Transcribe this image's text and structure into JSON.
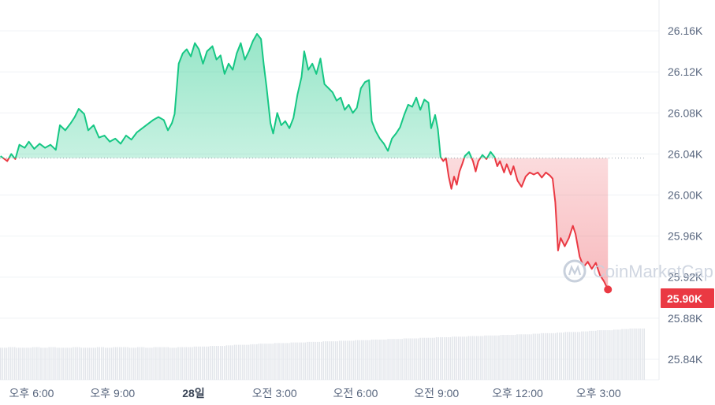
{
  "chart_data": {
    "type": "line",
    "baseline": 26.036,
    "current_label": "25.90K",
    "watermark": "CoinMarketCap",
    "ylim": [
      25.82,
      26.19
    ],
    "y_ticks": [
      "26.16K",
      "26.12K",
      "26.08K",
      "26.04K",
      "26.00K",
      "25.96K",
      "25.92K",
      "25.88K",
      "25.84K"
    ],
    "y_tick_values": [
      26.16,
      26.12,
      26.08,
      26.04,
      26.0,
      25.96,
      25.92,
      25.88,
      25.84
    ],
    "x_ticks": [
      "오후 6:00",
      "오후 9:00",
      "28일",
      "오전 3:00",
      "오전 6:00",
      "오전 9:00",
      "오후 12:00",
      "오후 3:00"
    ],
    "x_tick_hours": [
      0,
      3,
      6,
      9,
      12,
      15,
      18,
      21
    ],
    "x_range_hours": [
      -1.15,
      22.9
    ],
    "series": [
      {
        "values": [
          [
            -1.15,
            26.038
          ],
          [
            -0.9,
            26.033
          ],
          [
            -0.75,
            26.04
          ],
          [
            -0.6,
            26.035
          ],
          [
            -0.45,
            26.049
          ],
          [
            -0.25,
            26.046
          ],
          [
            -0.1,
            26.052
          ],
          [
            0.1,
            26.045
          ],
          [
            0.3,
            26.05
          ],
          [
            0.5,
            26.046
          ],
          [
            0.7,
            26.049
          ],
          [
            0.9,
            26.044
          ],
          [
            1.05,
            26.068
          ],
          [
            1.25,
            26.063
          ],
          [
            1.45,
            26.07
          ],
          [
            1.6,
            26.076
          ],
          [
            1.75,
            26.084
          ],
          [
            1.95,
            26.079
          ],
          [
            2.1,
            26.063
          ],
          [
            2.3,
            26.068
          ],
          [
            2.5,
            26.056
          ],
          [
            2.7,
            26.058
          ],
          [
            2.9,
            26.052
          ],
          [
            3.1,
            26.055
          ],
          [
            3.3,
            26.05
          ],
          [
            3.5,
            26.058
          ],
          [
            3.7,
            26.054
          ],
          [
            3.9,
            26.061
          ],
          [
            4.1,
            26.065
          ],
          [
            4.3,
            26.069
          ],
          [
            4.5,
            26.073
          ],
          [
            4.7,
            26.076
          ],
          [
            4.9,
            26.073
          ],
          [
            5.05,
            26.063
          ],
          [
            5.2,
            26.07
          ],
          [
            5.3,
            26.079
          ],
          [
            5.45,
            26.128
          ],
          [
            5.6,
            26.138
          ],
          [
            5.75,
            26.142
          ],
          [
            5.9,
            26.135
          ],
          [
            6.05,
            26.148
          ],
          [
            6.2,
            26.142
          ],
          [
            6.35,
            26.128
          ],
          [
            6.5,
            26.14
          ],
          [
            6.7,
            26.145
          ],
          [
            6.85,
            26.132
          ],
          [
            7.0,
            26.136
          ],
          [
            7.15,
            26.118
          ],
          [
            7.3,
            26.128
          ],
          [
            7.45,
            26.122
          ],
          [
            7.6,
            26.138
          ],
          [
            7.75,
            26.148
          ],
          [
            7.9,
            26.132
          ],
          [
            8.05,
            26.14
          ],
          [
            8.2,
            26.15
          ],
          [
            8.35,
            26.157
          ],
          [
            8.5,
            26.152
          ],
          [
            8.6,
            26.127
          ],
          [
            8.7,
            26.106
          ],
          [
            8.85,
            26.07
          ],
          [
            8.95,
            26.06
          ],
          [
            9.1,
            26.08
          ],
          [
            9.25,
            26.068
          ],
          [
            9.4,
            26.072
          ],
          [
            9.55,
            26.065
          ],
          [
            9.7,
            26.075
          ],
          [
            9.85,
            26.098
          ],
          [
            10.0,
            26.115
          ],
          [
            10.1,
            26.14
          ],
          [
            10.25,
            26.122
          ],
          [
            10.4,
            26.128
          ],
          [
            10.55,
            26.118
          ],
          [
            10.7,
            26.133
          ],
          [
            10.85,
            26.108
          ],
          [
            11.0,
            26.104
          ],
          [
            11.15,
            26.1
          ],
          [
            11.3,
            26.092
          ],
          [
            11.45,
            26.095
          ],
          [
            11.6,
            26.083
          ],
          [
            11.75,
            26.088
          ],
          [
            11.9,
            26.08
          ],
          [
            12.05,
            26.085
          ],
          [
            12.2,
            26.104
          ],
          [
            12.35,
            26.11
          ],
          [
            12.5,
            26.112
          ],
          [
            12.6,
            26.072
          ],
          [
            12.75,
            26.062
          ],
          [
            12.9,
            26.055
          ],
          [
            13.05,
            26.05
          ],
          [
            13.2,
            26.043
          ],
          [
            13.35,
            26.055
          ],
          [
            13.5,
            26.06
          ],
          [
            13.65,
            26.066
          ],
          [
            13.8,
            26.078
          ],
          [
            13.95,
            26.088
          ],
          [
            14.1,
            26.086
          ],
          [
            14.25,
            26.095
          ],
          [
            14.4,
            26.083
          ],
          [
            14.55,
            26.093
          ],
          [
            14.7,
            26.09
          ],
          [
            14.8,
            26.065
          ],
          [
            14.95,
            26.078
          ],
          [
            15.05,
            26.064
          ],
          [
            15.15,
            26.037
          ],
          [
            15.25,
            26.033
          ],
          [
            15.35,
            26.036
          ],
          [
            15.45,
            26.018
          ],
          [
            15.55,
            26.006
          ],
          [
            15.65,
            26.018
          ],
          [
            15.75,
            26.01
          ],
          [
            15.85,
            26.023
          ],
          [
            15.95,
            26.03
          ],
          [
            16.05,
            26.038
          ],
          [
            16.2,
            26.042
          ],
          [
            16.35,
            26.033
          ],
          [
            16.45,
            26.023
          ],
          [
            16.55,
            26.033
          ],
          [
            16.7,
            26.039
          ],
          [
            16.85,
            26.035
          ],
          [
            17.0,
            26.042
          ],
          [
            17.15,
            26.037
          ],
          [
            17.25,
            26.028
          ],
          [
            17.35,
            26.033
          ],
          [
            17.5,
            26.022
          ],
          [
            17.6,
            26.03
          ],
          [
            17.75,
            26.02
          ],
          [
            17.85,
            26.028
          ],
          [
            18.0,
            26.014
          ],
          [
            18.15,
            26.008
          ],
          [
            18.3,
            26.018
          ],
          [
            18.45,
            26.022
          ],
          [
            18.6,
            26.02
          ],
          [
            18.75,
            26.022
          ],
          [
            18.9,
            26.017
          ],
          [
            19.05,
            26.022
          ],
          [
            19.2,
            26.019
          ],
          [
            19.3,
            26.016
          ],
          [
            19.4,
            25.993
          ],
          [
            19.5,
            25.946
          ],
          [
            19.6,
            25.958
          ],
          [
            19.75,
            25.95
          ],
          [
            19.9,
            25.958
          ],
          [
            20.05,
            25.97
          ],
          [
            20.15,
            25.962
          ],
          [
            20.3,
            25.94
          ],
          [
            20.45,
            25.93
          ],
          [
            20.6,
            25.935
          ],
          [
            20.75,
            25.928
          ],
          [
            20.9,
            25.934
          ],
          [
            21.05,
            25.922
          ],
          [
            21.2,
            25.916
          ],
          [
            21.35,
            25.908
          ]
        ]
      }
    ],
    "volume": {
      "values": [
        0.55,
        0.56,
        0.55,
        0.55,
        0.56,
        0.55,
        0.56,
        0.55,
        0.55,
        0.56,
        0.55,
        0.55,
        0.56,
        0.55,
        0.56,
        0.56,
        0.55,
        0.56,
        0.55,
        0.56,
        0.56,
        0.55,
        0.56,
        0.56,
        0.57,
        0.57,
        0.58,
        0.58,
        0.59,
        0.6,
        0.6,
        0.61,
        0.62,
        0.62,
        0.63,
        0.63,
        0.64,
        0.64,
        0.65,
        0.65,
        0.66,
        0.66,
        0.67,
        0.67,
        0.68,
        0.68,
        0.69,
        0.69,
        0.7,
        0.7,
        0.71,
        0.71,
        0.72,
        0.72,
        0.73,
        0.73,
        0.74,
        0.74,
        0.75,
        0.75,
        0.76,
        0.76,
        0.77,
        0.77,
        0.78,
        0.78,
        0.79,
        0.8,
        0.8,
        0.81,
        0.82,
        0.82,
        0.83,
        0.84,
        0.85,
        0.85,
        0.86,
        0.87,
        0.88,
        0.88
      ]
    }
  }
}
